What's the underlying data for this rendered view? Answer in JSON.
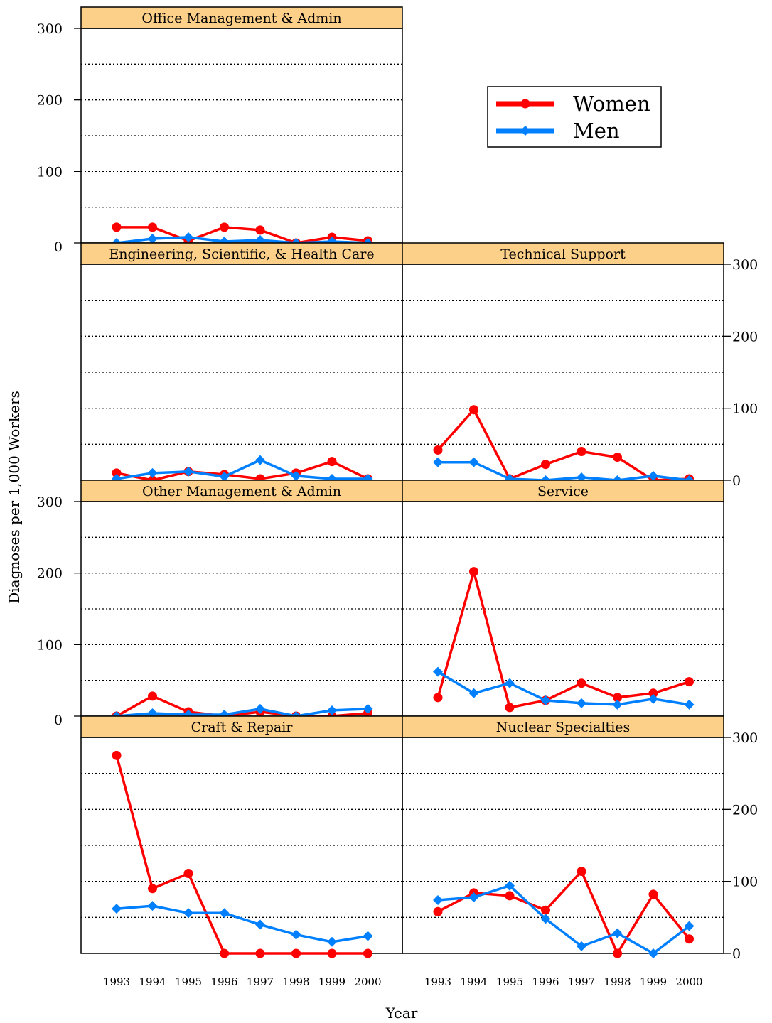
{
  "chart_data": {
    "type": "line",
    "ylabel": "Diagnoses per 1,000 Workers",
    "xlabel": "Year",
    "ylim": [
      0,
      300
    ],
    "y_ticks": [
      0,
      100,
      200,
      300
    ],
    "gridlines": "dotted at every 50",
    "x": [
      "1993",
      "1994",
      "1995",
      "1996",
      "1997",
      "1998",
      "1999",
      "2000"
    ],
    "legend": {
      "placement": "top-right",
      "entries": [
        {
          "name": "Women",
          "color": "#ff0000",
          "marker": "circle"
        },
        {
          "name": "Men",
          "color": "#0080ff",
          "marker": "diamond"
        }
      ]
    },
    "panels": [
      {
        "title": "Office Management & Admin",
        "series": [
          {
            "name": "Women",
            "values": [
              22,
              22,
              3,
              22,
              18,
              0,
              8,
              3
            ]
          },
          {
            "name": "Men",
            "values": [
              0,
              6,
              8,
              2,
              4,
              0,
              2,
              0
            ]
          }
        ]
      },
      {
        "title": "Engineering, Scientific, & Health Care",
        "series": [
          {
            "name": "Women",
            "values": [
              10,
              0,
              12,
              8,
              2,
              10,
              26,
              2
            ]
          },
          {
            "name": "Men",
            "values": [
              2,
              10,
              12,
              5,
              28,
              6,
              2,
              2
            ]
          }
        ]
      },
      {
        "title": "Technical Support",
        "series": [
          {
            "name": "Women",
            "values": [
              42,
              98,
              2,
              22,
              40,
              32,
              0,
              2
            ]
          },
          {
            "name": "Men",
            "values": [
              25,
              25,
              2,
              0,
              4,
              0,
              6,
              0
            ]
          }
        ]
      },
      {
        "title": "Other Management & Admin",
        "series": [
          {
            "name": "Women",
            "values": [
              0,
              28,
              6,
              0,
              6,
              0,
              0,
              4
            ]
          },
          {
            "name": "Men",
            "values": [
              0,
              4,
              2,
              2,
              10,
              0,
              8,
              10
            ]
          }
        ]
      },
      {
        "title": "Service",
        "series": [
          {
            "name": "Women",
            "values": [
              26,
              202,
              12,
              22,
              46,
              26,
              32,
              48
            ]
          },
          {
            "name": "Men",
            "values": [
              62,
              32,
              46,
              22,
              18,
              16,
              24,
              16
            ]
          }
        ]
      },
      {
        "title": "Craft & Repair",
        "series": [
          {
            "name": "Women",
            "values": [
              275,
              90,
              111,
              0,
              0,
              0,
              0,
              0
            ]
          },
          {
            "name": "Men",
            "values": [
              62,
              66,
              56,
              56,
              40,
              26,
              16,
              24
            ]
          }
        ]
      },
      {
        "title": "Nuclear Specialties",
        "series": [
          {
            "name": "Women",
            "values": [
              58,
              84,
              80,
              60,
              114,
              0,
              82,
              20
            ]
          },
          {
            "name": "Men",
            "values": [
              74,
              78,
              94,
              48,
              10,
              28,
              0,
              38
            ]
          }
        ]
      }
    ]
  }
}
